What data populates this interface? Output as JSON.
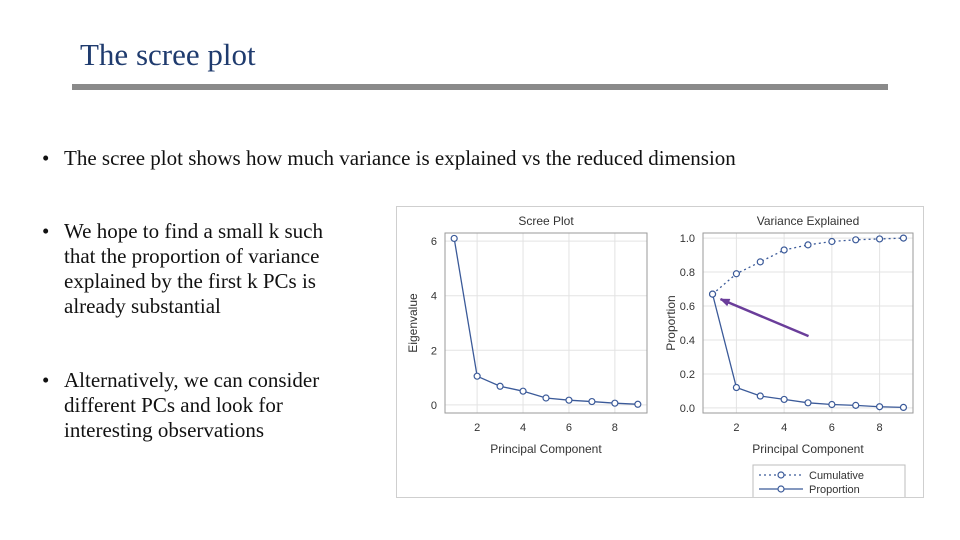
{
  "slide": {
    "title": "The scree plot",
    "bullets": [
      "The scree plot shows how much variance is explained vs the reduced dimension",
      "We hope to find a small k such\nthat the proportion of variance\nexplained by the first k PCs is\nalready substantial",
      "Alternatively, we can consider\ndifferent PCs and look for\ninteresting observations"
    ],
    "bullet_glyph": "•"
  },
  "chart_data": [
    {
      "type": "line",
      "title": "Scree Plot",
      "xlabel": "Principal Component",
      "ylabel": "Eigenvalue",
      "x": [
        1,
        2,
        3,
        4,
        5,
        6,
        7,
        8,
        9
      ],
      "xticks": [
        "2",
        "4",
        "6",
        "8"
      ],
      "yticks": [
        "0",
        "2",
        "4",
        "6"
      ],
      "xlim": [
        0.6,
        9.4
      ],
      "ylim": [
        -0.3,
        6.3
      ],
      "grid": true,
      "series": [
        {
          "values": [
            6.1,
            1.05,
            0.68,
            0.5,
            0.25,
            0.17,
            0.12,
            0.06,
            0.02
          ],
          "color": "#3b5a99",
          "style": "solid"
        }
      ]
    },
    {
      "type": "line",
      "title": "Variance Explained",
      "xlabel": "Principal Component",
      "ylabel": "Proportion",
      "x": [
        1,
        2,
        3,
        4,
        5,
        6,
        7,
        8,
        9
      ],
      "xticks": [
        "2",
        "4",
        "6",
        "8"
      ],
      "yticks": [
        "0.0",
        "0.2",
        "0.4",
        "0.6",
        "0.8",
        "1.0"
      ],
      "xlim": [
        0.6,
        9.4
      ],
      "ylim": [
        -0.03,
        1.03
      ],
      "grid": true,
      "legend": "bottom",
      "series": [
        {
          "name": "Cumulative",
          "values": [
            0.67,
            0.79,
            0.86,
            0.93,
            0.96,
            0.98,
            0.99,
            0.995,
            1.0
          ],
          "color": "#3b5a99",
          "style": "dotted"
        },
        {
          "name": "Proportion",
          "values": [
            0.67,
            0.12,
            0.07,
            0.05,
            0.03,
            0.02,
            0.015,
            0.007,
            0.003
          ],
          "color": "#3b5a99",
          "style": "solid"
        }
      ]
    }
  ],
  "annotation": {
    "type": "arrow",
    "color": "#6a3d9a",
    "points_to": "first component (0.67)"
  }
}
